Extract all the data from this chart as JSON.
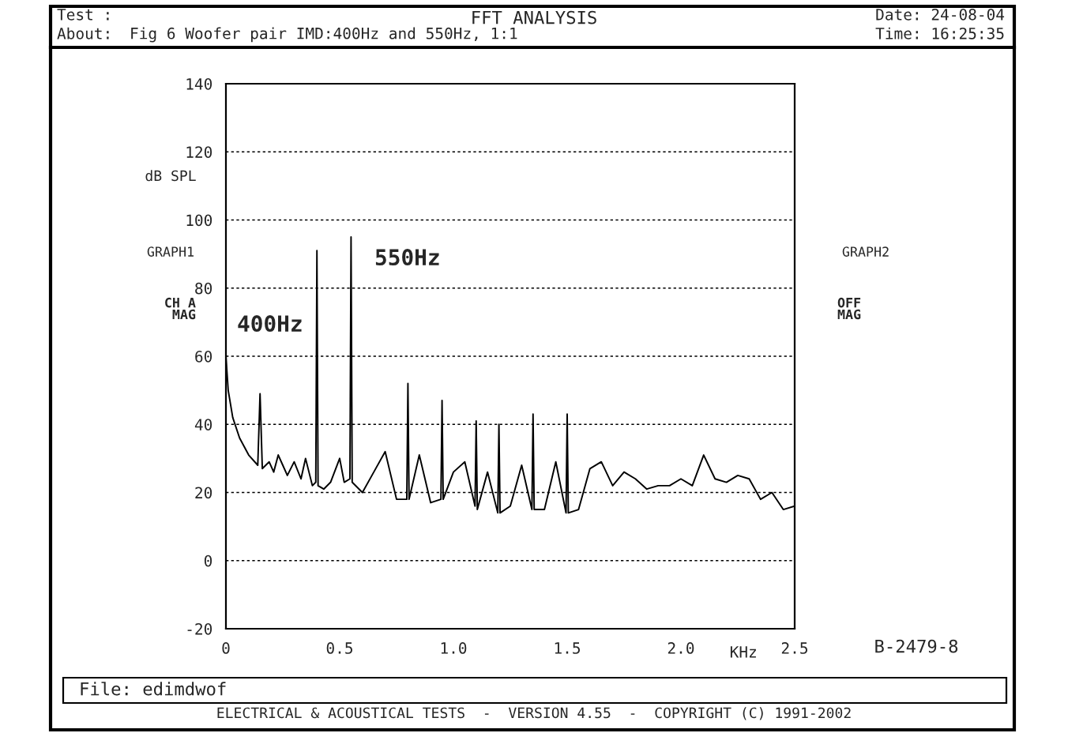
{
  "chart_data": {
    "type": "line",
    "title": "FFT ANALYSIS",
    "xlabel": "KHz",
    "ylabel": "dB SPL",
    "annotations": [
      "Test :",
      "Date: 24-08-04",
      "About:",
      "Fig 6 Woofer pair IMD:400Hz and 550Hz, 1:1",
      "Time: 16:25:35",
      "GRAPH1",
      "CH A\nMAG",
      "GRAPH2",
      "OFF\nMAG",
      "B-2479-8",
      "File: edimdwof",
      "ELECTRICAL & ACOUSTICAL TESTS  -  VERSION 4.55  -  COPYRIGHT (C) 1991-2002",
      "400Hz",
      "550Hz"
    ],
    "series": [
      {
        "color": "#000000",
        "x": [
          0,
          0.01,
          0.03,
          0.06,
          0.1,
          0.14,
          0.15,
          0.16,
          0.19,
          0.21,
          0.23,
          0.25,
          0.27,
          0.3,
          0.33,
          0.35,
          0.38,
          0.395,
          0.4,
          0.405,
          0.43,
          0.46,
          0.5,
          0.52,
          0.545,
          0.55,
          0.555,
          0.6,
          0.65,
          0.7,
          0.75,
          0.795,
          0.8,
          0.805,
          0.85,
          0.9,
          0.945,
          0.95,
          0.955,
          1.0,
          1.05,
          1.095,
          1.1,
          1.105,
          1.15,
          1.195,
          1.2,
          1.205,
          1.25,
          1.3,
          1.345,
          1.35,
          1.355,
          1.4,
          1.45,
          1.495,
          1.5,
          1.505,
          1.55,
          1.6,
          1.65,
          1.7,
          1.75,
          1.8,
          1.85,
          1.9,
          1.95,
          2.0,
          2.05,
          2.1,
          2.15,
          2.2,
          2.25,
          2.3,
          2.35,
          2.4,
          2.45,
          2.5
        ],
        "values": [
          60,
          50,
          42,
          36,
          31,
          28,
          49,
          27,
          29,
          26,
          31,
          28,
          25,
          29,
          24,
          30,
          22,
          23,
          91,
          22,
          21,
          23,
          30,
          23,
          24,
          95,
          23,
          20,
          26,
          32,
          18,
          18,
          52,
          18,
          31,
          17,
          18,
          47,
          18,
          26,
          29,
          16,
          41,
          15,
          26,
          14,
          40,
          14,
          16,
          28,
          15,
          43,
          15,
          15,
          29,
          14,
          43,
          14,
          15,
          27,
          29,
          22,
          26,
          24,
          21,
          22,
          22,
          24,
          22,
          31,
          24,
          23,
          25,
          24,
          18,
          20,
          15,
          16
        ]
      }
    ],
    "xlim": [
      0,
      2.5
    ],
    "xticks": [
      {
        "value": 0,
        "label": "0"
      },
      0.5,
      {
        "value": 1,
        "label": "1.0"
      },
      1.5,
      {
        "value": 2,
        "label": "2.0"
      },
      2.5
    ],
    "ylim": [
      -20,
      140
    ],
    "yticks": [
      -20,
      0,
      20,
      40,
      60,
      80,
      100,
      120,
      140
    ],
    "grid": "y",
    "legend": false,
    "line_style": "solid",
    "marker": "none"
  }
}
